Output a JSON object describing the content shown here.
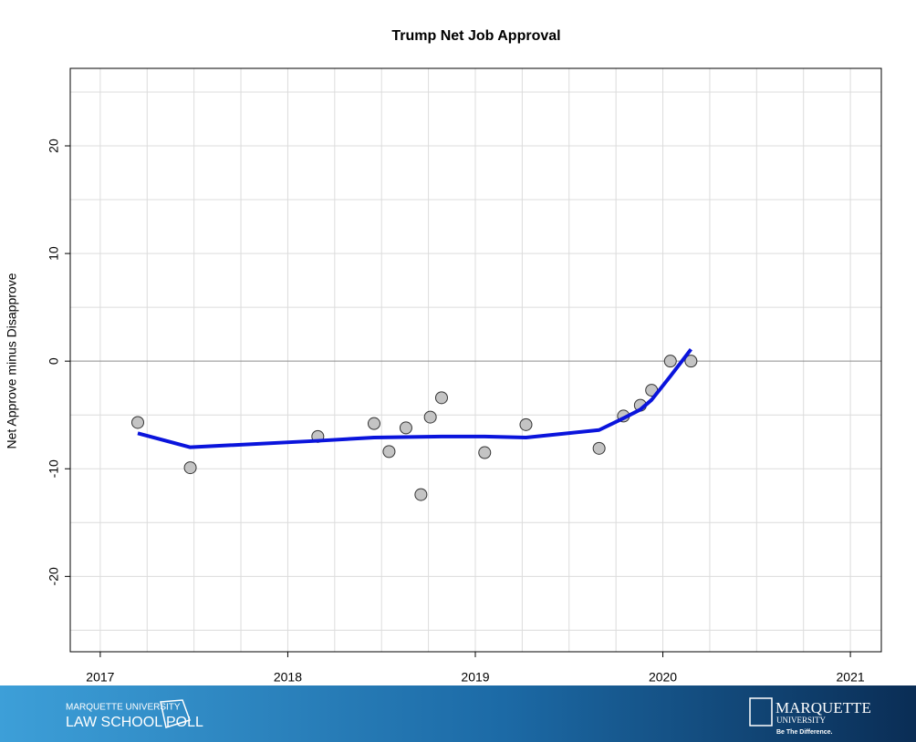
{
  "chart_data": {
    "type": "scatter",
    "title": "Trump Net Job Approval",
    "y_label": "Net Approve minus Disapprove",
    "xlim": [
      2016.84,
      2021.165
    ],
    "ylim": [
      -27.0,
      27.2
    ],
    "xticks": [
      2017,
      2018,
      2019,
      2020,
      2021
    ],
    "yticks": [
      -20,
      -10,
      0,
      10,
      20
    ],
    "xgrid": [
      2017,
      2017.25,
      2017.5,
      2017.75,
      2018,
      2018.25,
      2018.5,
      2018.75,
      2019,
      2019.25,
      2019.5,
      2019.75,
      2020,
      2020.25,
      2020.5,
      2020.75,
      2021
    ],
    "ygrid": [
      -25,
      -20,
      -15,
      -10,
      -5,
      5,
      10,
      15,
      20,
      25
    ],
    "reference_line": 0,
    "grid": true,
    "series": [
      {
        "type": "scatter",
        "color": "#c4c4c4",
        "x": [
          2017.2,
          2017.48,
          2018.16,
          2018.46,
          2018.54,
          2018.63,
          2018.71,
          2018.76,
          2018.82,
          2019.05,
          2019.27,
          2019.66,
          2019.79,
          2019.88,
          2019.94,
          2020.04,
          2020.15
        ],
        "values": [
          -5.7,
          -9.9,
          -7.0,
          -5.8,
          -8.4,
          -6.2,
          -12.4,
          -5.2,
          -3.4,
          -8.5,
          -5.9,
          -8.1,
          -5.1,
          -4.1,
          -2.7,
          0,
          0
        ]
      },
      {
        "type": "line",
        "color": "#0a14dc",
        "x": [
          2017.2,
          2017.48,
          2018.16,
          2018.46,
          2018.82,
          2019.05,
          2019.27,
          2019.66,
          2019.79,
          2019.88,
          2019.94,
          2020.04,
          2020.15
        ],
        "values": [
          -6.7,
          -8.0,
          -7.4,
          -7.1,
          -7.0,
          -7.0,
          -7.1,
          -6.4,
          -5.3,
          -4.5,
          -3.6,
          -1.4,
          1.1
        ]
      }
    ]
  },
  "footer": {
    "left_line1": "MARQUETTE UNIVERSITY",
    "left_line2": "LAW SCHOOL POLL",
    "right_line1": "MARQUETTE",
    "right_line2": "UNIVERSITY",
    "right_line3": "Be The Difference."
  }
}
